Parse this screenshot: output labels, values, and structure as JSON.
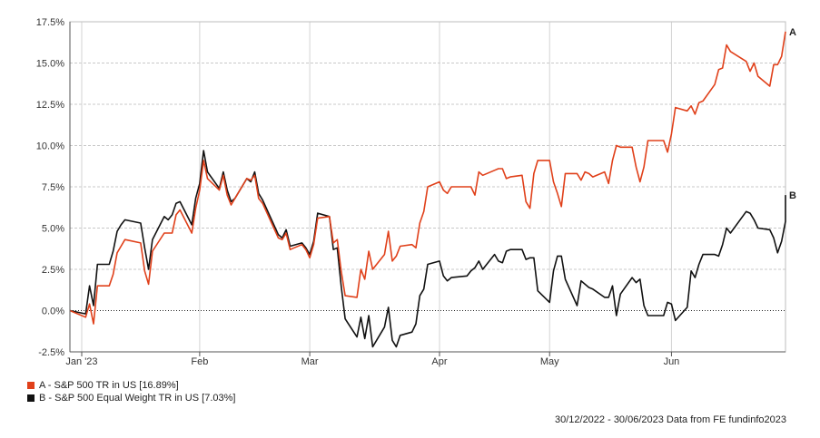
{
  "chart_data": {
    "type": "line",
    "y_axis": {
      "ylim": [
        -2.5,
        17.5
      ],
      "ticks": [
        -2.5,
        0,
        2.5,
        5,
        7.5,
        10,
        12.5,
        15,
        17.5
      ],
      "tick_suffix": "%"
    },
    "x_axis": {
      "domain": [
        "2022-12-30",
        "2023-06-30"
      ],
      "ticks": [
        {
          "date": "2023-01-02",
          "label": "Jan '23"
        },
        {
          "date": "2023-02-01",
          "label": "Feb"
        },
        {
          "date": "2023-03-01",
          "label": "Mar"
        },
        {
          "date": "2023-04-03",
          "label": "Apr"
        },
        {
          "date": "2023-05-01",
          "label": "May"
        },
        {
          "date": "2023-06-01",
          "label": "Jun"
        }
      ]
    },
    "grid": true,
    "zero_line": "dotted",
    "series": [
      {
        "key": "A",
        "name": "S&P 500 TR in US",
        "legend_text": "A - S&P 500 TR in US [16.89%]",
        "color": "#e0401a",
        "points": [
          [
            "2022-12-30",
            0.0
          ],
          [
            "2023-01-03",
            -0.4
          ],
          [
            "2023-01-04",
            0.4
          ],
          [
            "2023-01-05",
            -0.8
          ],
          [
            "2023-01-06",
            1.5
          ],
          [
            "2023-01-09",
            1.5
          ],
          [
            "2023-01-10",
            2.2
          ],
          [
            "2023-01-11",
            3.5
          ],
          [
            "2023-01-12",
            3.9
          ],
          [
            "2023-01-13",
            4.3
          ],
          [
            "2023-01-17",
            4.1
          ],
          [
            "2023-01-18",
            2.4
          ],
          [
            "2023-01-19",
            1.6
          ],
          [
            "2023-01-20",
            3.6
          ],
          [
            "2023-01-23",
            4.7
          ],
          [
            "2023-01-24",
            4.7
          ],
          [
            "2023-01-25",
            4.7
          ],
          [
            "2023-01-26",
            5.8
          ],
          [
            "2023-01-27",
            6.1
          ],
          [
            "2023-01-30",
            4.7
          ],
          [
            "2023-01-31",
            6.2
          ],
          [
            "2023-02-01",
            7.3
          ],
          [
            "2023-02-02",
            9.1
          ],
          [
            "2023-02-03",
            8.0
          ],
          [
            "2023-02-06",
            7.3
          ],
          [
            "2023-02-07",
            8.2
          ],
          [
            "2023-02-08",
            7.0
          ],
          [
            "2023-02-09",
            6.4
          ],
          [
            "2023-02-10",
            6.8
          ],
          [
            "2023-02-13",
            8.0
          ],
          [
            "2023-02-14",
            7.9
          ],
          [
            "2023-02-15",
            8.2
          ],
          [
            "2023-02-16",
            6.8
          ],
          [
            "2023-02-17",
            6.5
          ],
          [
            "2023-02-21",
            4.4
          ],
          [
            "2023-02-22",
            4.3
          ],
          [
            "2023-02-23",
            4.7
          ],
          [
            "2023-02-24",
            3.7
          ],
          [
            "2023-02-27",
            4.0
          ],
          [
            "2023-02-28",
            3.7
          ],
          [
            "2023-03-01",
            3.2
          ],
          [
            "2023-03-02",
            4.0
          ],
          [
            "2023-03-03",
            5.6
          ],
          [
            "2023-03-06",
            5.7
          ],
          [
            "2023-03-07",
            4.1
          ],
          [
            "2023-03-08",
            4.3
          ],
          [
            "2023-03-09",
            2.4
          ],
          [
            "2023-03-10",
            0.9
          ],
          [
            "2023-03-13",
            0.8
          ],
          [
            "2023-03-14",
            2.5
          ],
          [
            "2023-03-15",
            1.9
          ],
          [
            "2023-03-16",
            3.6
          ],
          [
            "2023-03-17",
            2.5
          ],
          [
            "2023-03-20",
            3.4
          ],
          [
            "2023-03-21",
            4.8
          ],
          [
            "2023-03-22",
            3.0
          ],
          [
            "2023-03-23",
            3.3
          ],
          [
            "2023-03-24",
            3.9
          ],
          [
            "2023-03-27",
            4.0
          ],
          [
            "2023-03-28",
            3.8
          ],
          [
            "2023-03-29",
            5.3
          ],
          [
            "2023-03-30",
            6.0
          ],
          [
            "2023-03-31",
            7.5
          ],
          [
            "2023-04-03",
            7.8
          ],
          [
            "2023-04-04",
            7.3
          ],
          [
            "2023-04-05",
            7.1
          ],
          [
            "2023-04-06",
            7.5
          ],
          [
            "2023-04-10",
            7.5
          ],
          [
            "2023-04-11",
            7.5
          ],
          [
            "2023-04-12",
            7.0
          ],
          [
            "2023-04-13",
            8.4
          ],
          [
            "2023-04-14",
            8.2
          ],
          [
            "2023-04-17",
            8.5
          ],
          [
            "2023-04-18",
            8.6
          ],
          [
            "2023-04-19",
            8.6
          ],
          [
            "2023-04-20",
            8.0
          ],
          [
            "2023-04-21",
            8.1
          ],
          [
            "2023-04-24",
            8.2
          ],
          [
            "2023-04-25",
            6.6
          ],
          [
            "2023-04-26",
            6.2
          ],
          [
            "2023-04-27",
            8.3
          ],
          [
            "2023-04-28",
            9.1
          ],
          [
            "2023-05-01",
            9.1
          ],
          [
            "2023-05-02",
            7.8
          ],
          [
            "2023-05-03",
            7.1
          ],
          [
            "2023-05-04",
            6.3
          ],
          [
            "2023-05-05",
            8.3
          ],
          [
            "2023-05-08",
            8.3
          ],
          [
            "2023-05-09",
            7.9
          ],
          [
            "2023-05-10",
            8.4
          ],
          [
            "2023-05-11",
            8.3
          ],
          [
            "2023-05-12",
            8.1
          ],
          [
            "2023-05-15",
            8.4
          ],
          [
            "2023-05-16",
            7.7
          ],
          [
            "2023-05-17",
            9.1
          ],
          [
            "2023-05-18",
            10.0
          ],
          [
            "2023-05-19",
            9.9
          ],
          [
            "2023-05-22",
            9.9
          ],
          [
            "2023-05-23",
            8.7
          ],
          [
            "2023-05-24",
            7.8
          ],
          [
            "2023-05-25",
            8.7
          ],
          [
            "2023-05-26",
            10.3
          ],
          [
            "2023-05-30",
            10.3
          ],
          [
            "2023-05-31",
            9.6
          ],
          [
            "2023-06-01",
            10.7
          ],
          [
            "2023-06-02",
            12.3
          ],
          [
            "2023-06-05",
            12.1
          ],
          [
            "2023-06-06",
            12.4
          ],
          [
            "2023-06-07",
            11.9
          ],
          [
            "2023-06-08",
            12.6
          ],
          [
            "2023-06-09",
            12.7
          ],
          [
            "2023-06-12",
            13.7
          ],
          [
            "2023-06-13",
            14.6
          ],
          [
            "2023-06-14",
            14.7
          ],
          [
            "2023-06-15",
            16.1
          ],
          [
            "2023-06-16",
            15.7
          ],
          [
            "2023-06-20",
            15.1
          ],
          [
            "2023-06-21",
            14.5
          ],
          [
            "2023-06-22",
            15.0
          ],
          [
            "2023-06-23",
            14.2
          ],
          [
            "2023-06-26",
            13.6
          ],
          [
            "2023-06-27",
            14.9
          ],
          [
            "2023-06-28",
            14.9
          ],
          [
            "2023-06-29",
            15.4
          ],
          [
            "2023-06-30",
            16.9
          ]
        ]
      },
      {
        "key": "B",
        "name": "S&P 500 Equal Weight TR in US",
        "legend_text": "B - S&P 500 Equal Weight TR in US [7.03%]",
        "color": "#111111",
        "points": [
          [
            "2022-12-30",
            0.0
          ],
          [
            "2023-01-03",
            -0.2
          ],
          [
            "2023-01-04",
            1.5
          ],
          [
            "2023-01-05",
            0.3
          ],
          [
            "2023-01-06",
            2.8
          ],
          [
            "2023-01-09",
            2.8
          ],
          [
            "2023-01-10",
            3.6
          ],
          [
            "2023-01-11",
            4.8
          ],
          [
            "2023-01-12",
            5.2
          ],
          [
            "2023-01-13",
            5.5
          ],
          [
            "2023-01-17",
            5.3
          ],
          [
            "2023-01-18",
            3.8
          ],
          [
            "2023-01-19",
            2.5
          ],
          [
            "2023-01-20",
            4.3
          ],
          [
            "2023-01-23",
            5.7
          ],
          [
            "2023-01-24",
            5.5
          ],
          [
            "2023-01-25",
            5.8
          ],
          [
            "2023-01-26",
            6.5
          ],
          [
            "2023-01-27",
            6.6
          ],
          [
            "2023-01-30",
            5.2
          ],
          [
            "2023-01-31",
            6.8
          ],
          [
            "2023-02-01",
            7.7
          ],
          [
            "2023-02-02",
            9.7
          ],
          [
            "2023-02-03",
            8.4
          ],
          [
            "2023-02-06",
            7.4
          ],
          [
            "2023-02-07",
            8.4
          ],
          [
            "2023-02-08",
            7.3
          ],
          [
            "2023-02-09",
            6.6
          ],
          [
            "2023-02-10",
            6.8
          ],
          [
            "2023-02-13",
            8.0
          ],
          [
            "2023-02-14",
            7.8
          ],
          [
            "2023-02-15",
            8.4
          ],
          [
            "2023-02-16",
            7.1
          ],
          [
            "2023-02-17",
            6.7
          ],
          [
            "2023-02-21",
            4.6
          ],
          [
            "2023-02-22",
            4.4
          ],
          [
            "2023-02-23",
            4.9
          ],
          [
            "2023-02-24",
            3.9
          ],
          [
            "2023-02-27",
            4.1
          ],
          [
            "2023-02-28",
            3.8
          ],
          [
            "2023-03-01",
            3.4
          ],
          [
            "2023-03-02",
            4.2
          ],
          [
            "2023-03-03",
            5.9
          ],
          [
            "2023-03-06",
            5.7
          ],
          [
            "2023-03-07",
            3.7
          ],
          [
            "2023-03-08",
            3.8
          ],
          [
            "2023-03-09",
            1.5
          ],
          [
            "2023-03-10",
            -0.5
          ],
          [
            "2023-03-13",
            -1.6
          ],
          [
            "2023-03-14",
            -0.4
          ],
          [
            "2023-03-15",
            -1.7
          ],
          [
            "2023-03-16",
            -0.3
          ],
          [
            "2023-03-17",
            -2.2
          ],
          [
            "2023-03-20",
            -1.0
          ],
          [
            "2023-03-21",
            0.2
          ],
          [
            "2023-03-22",
            -1.8
          ],
          [
            "2023-03-23",
            -2.2
          ],
          [
            "2023-03-24",
            -1.5
          ],
          [
            "2023-03-27",
            -1.3
          ],
          [
            "2023-03-28",
            -0.8
          ],
          [
            "2023-03-29",
            0.9
          ],
          [
            "2023-03-30",
            1.3
          ],
          [
            "2023-03-31",
            2.8
          ],
          [
            "2023-04-03",
            3.0
          ],
          [
            "2023-04-04",
            2.1
          ],
          [
            "2023-04-05",
            1.8
          ],
          [
            "2023-04-06",
            2.0
          ],
          [
            "2023-04-10",
            2.1
          ],
          [
            "2023-04-11",
            2.4
          ],
          [
            "2023-04-12",
            2.6
          ],
          [
            "2023-04-13",
            3.0
          ],
          [
            "2023-04-14",
            2.5
          ],
          [
            "2023-04-17",
            3.4
          ],
          [
            "2023-04-18",
            3.0
          ],
          [
            "2023-04-19",
            2.9
          ],
          [
            "2023-04-20",
            3.6
          ],
          [
            "2023-04-21",
            3.7
          ],
          [
            "2023-04-24",
            3.7
          ],
          [
            "2023-04-25",
            3.1
          ],
          [
            "2023-04-26",
            3.2
          ],
          [
            "2023-04-27",
            3.2
          ],
          [
            "2023-04-28",
            1.2
          ],
          [
            "2023-05-01",
            0.5
          ],
          [
            "2023-05-02",
            2.4
          ],
          [
            "2023-05-03",
            3.3
          ],
          [
            "2023-05-04",
            3.3
          ],
          [
            "2023-05-05",
            1.9
          ],
          [
            "2023-05-08",
            0.3
          ],
          [
            "2023-05-09",
            1.8
          ],
          [
            "2023-05-10",
            1.6
          ],
          [
            "2023-05-11",
            1.4
          ],
          [
            "2023-05-12",
            1.3
          ],
          [
            "2023-05-15",
            0.8
          ],
          [
            "2023-05-16",
            0.8
          ],
          [
            "2023-05-17",
            1.5
          ],
          [
            "2023-05-18",
            -0.3
          ],
          [
            "2023-05-19",
            1.0
          ],
          [
            "2023-05-22",
            2.0
          ],
          [
            "2023-05-23",
            1.7
          ],
          [
            "2023-05-24",
            1.9
          ],
          [
            "2023-05-25",
            0.3
          ],
          [
            "2023-05-26",
            -0.3
          ],
          [
            "2023-05-30",
            -0.3
          ],
          [
            "2023-05-31",
            0.5
          ],
          [
            "2023-06-01",
            0.4
          ],
          [
            "2023-06-02",
            -0.6
          ],
          [
            "2023-06-05",
            0.2
          ],
          [
            "2023-06-06",
            2.4
          ],
          [
            "2023-06-07",
            2.0
          ],
          [
            "2023-06-08",
            2.8
          ],
          [
            "2023-06-09",
            3.4
          ],
          [
            "2023-06-12",
            3.4
          ],
          [
            "2023-06-13",
            3.3
          ],
          [
            "2023-06-14",
            4.0
          ],
          [
            "2023-06-15",
            5.0
          ],
          [
            "2023-06-16",
            4.7
          ],
          [
            "2023-06-20",
            6.0
          ],
          [
            "2023-06-21",
            5.9
          ],
          [
            "2023-06-22",
            5.5
          ],
          [
            "2023-06-23",
            5.0
          ],
          [
            "2023-06-26",
            4.9
          ],
          [
            "2023-06-27",
            4.4
          ],
          [
            "2023-06-28",
            3.5
          ],
          [
            "2023-06-29",
            4.2
          ],
          [
            "2023-06-30",
            5.4
          ],
          [
            "2023-06-30",
            7.0
          ]
        ]
      }
    ]
  },
  "legend": [
    {
      "key": "A",
      "text": "A - S&P 500 TR in US [16.89%]",
      "color": "#e0401a"
    },
    {
      "key": "B",
      "text": "B - S&P 500 Equal Weight TR in US [7.03%]",
      "color": "#111111"
    }
  ],
  "footer": {
    "text": "30/12/2022 - 30/06/2023 Data from FE fundinfo2023"
  }
}
